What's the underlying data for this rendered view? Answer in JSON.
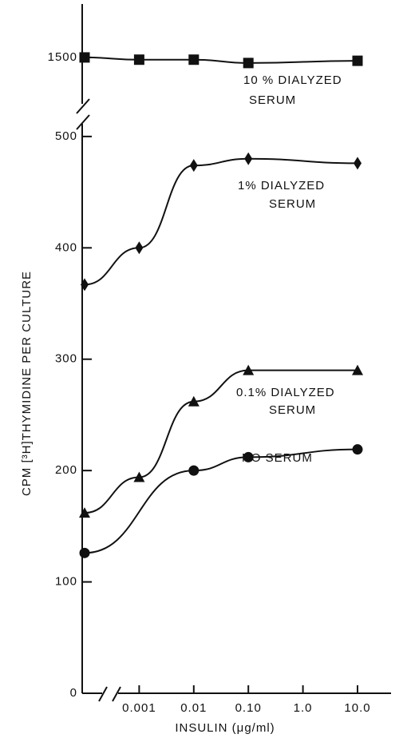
{
  "chart_data": {
    "type": "line",
    "ylabel": "CPM [³H]THYMIDINE PER CULTURE",
    "xlabel": "INSULIN (μg/ml)",
    "categories": [
      null,
      "0.001",
      "0.01",
      "0.10",
      "1.0",
      "10.0"
    ],
    "ylim": [
      0,
      520
    ],
    "yticks": [
      0,
      100,
      200,
      300,
      400,
      500
    ],
    "y2lim": [
      1444,
      1548
    ],
    "y2ticks": [
      1500
    ],
    "series": [
      {
        "label": [
          "10 % DIALYZED",
          "SERUM"
        ],
        "marker": "square",
        "color": "#111111",
        "axis": "y2",
        "values": [
          1500,
          1498,
          1498,
          1495,
          null,
          1497
        ]
      },
      {
        "label": [
          "1% DIALYZED",
          "SERUM"
        ],
        "marker": "diamond",
        "color": "#111111",
        "values": [
          367,
          400,
          474,
          480,
          null,
          476
        ]
      },
      {
        "label": [
          "0.1% DIALYZED",
          "SERUM"
        ],
        "marker": "triangle",
        "color": "#111111",
        "values": [
          162,
          194,
          262,
          290,
          null,
          290
        ]
      },
      {
        "label": [
          "NO SERUM"
        ],
        "marker": "circle",
        "color": "#111111",
        "values": [
          126,
          null,
          200,
          212,
          null,
          219
        ]
      }
    ]
  }
}
